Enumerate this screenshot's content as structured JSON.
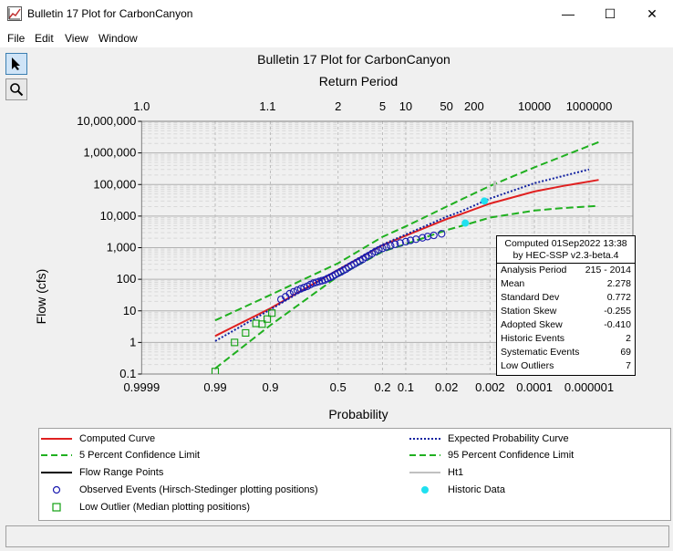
{
  "window": {
    "title": "Bulletin 17 Plot for CarbonCanyon",
    "minimize": "—",
    "maximize": "☐",
    "close": "✕"
  },
  "menu": [
    "File",
    "Edit",
    "View",
    "Window"
  ],
  "tools": [
    {
      "name": "pointer-icon"
    },
    {
      "name": "zoom-icon"
    }
  ],
  "colors": {
    "computed": "#e02020",
    "expected": "#1020a0",
    "confidence": "#20b020",
    "observed": "#1a1ab0",
    "low_outlier": "#10a010",
    "historic": "#20e0f0",
    "ht1": "#c0c0c0",
    "flow_range": "#000000"
  },
  "chart_data": {
    "type": "line",
    "title": "Bulletin 17 Plot for CarbonCanyon",
    "top_axis_label": "Return Period",
    "xlabel": "Probability",
    "ylabel": "Flow (cfs)",
    "y_scale": "log",
    "x_scale": "normal-probability",
    "ylim": [
      0.1,
      10000000
    ],
    "y_ticks": [
      {
        "value": 0.1,
        "label": "0.1"
      },
      {
        "value": 1,
        "label": "1"
      },
      {
        "value": 10,
        "label": "10"
      },
      {
        "value": 100,
        "label": "100"
      },
      {
        "value": 1000,
        "label": "1,000"
      },
      {
        "value": 10000,
        "label": "10,000"
      },
      {
        "value": 100000,
        "label": "100,000"
      },
      {
        "value": 1000000,
        "label": "1,000,000"
      },
      {
        "value": 10000000,
        "label": "10,000,000"
      }
    ],
    "prob_ticks": [
      {
        "value": 0.9999,
        "label": "0.9999"
      },
      {
        "value": 0.99,
        "label": "0.99"
      },
      {
        "value": 0.9,
        "label": "0.9"
      },
      {
        "value": 0.5,
        "label": "0.5"
      },
      {
        "value": 0.2,
        "label": "0.2"
      },
      {
        "value": 0.1,
        "label": "0.1"
      },
      {
        "value": 0.02,
        "label": "0.02"
      },
      {
        "value": 0.002,
        "label": "0.002"
      },
      {
        "value": 0.0001,
        "label": "0.0001"
      },
      {
        "value": 1e-06,
        "label": "0.000001"
      }
    ],
    "return_ticks": [
      {
        "value": 1.0,
        "label": "1.0"
      },
      {
        "value": 1.1,
        "label": "1.1"
      },
      {
        "value": 2,
        "label": "2"
      },
      {
        "value": 5,
        "label": "5"
      },
      {
        "value": 10,
        "label": "10"
      },
      {
        "value": 50,
        "label": "50"
      },
      {
        "value": 200,
        "label": "200"
      },
      {
        "value": 10000,
        "label": "10000"
      },
      {
        "value": 1000000,
        "label": "1000000"
      }
    ],
    "grid": true,
    "legend_placement": "bottom",
    "series": [
      {
        "name": "Computed Curve",
        "style": "solid",
        "points": [
          [
            0.99,
            1.6
          ],
          [
            0.9,
            12
          ],
          [
            0.5,
            200
          ],
          [
            0.2,
            1200
          ],
          [
            0.1,
            2400
          ],
          [
            0.02,
            8000
          ],
          [
            0.01,
            11500
          ],
          [
            0.002,
            25000
          ],
          [
            0.0001,
            60000
          ],
          [
            1e-05,
            90000
          ],
          [
            4e-07,
            140000
          ]
        ]
      },
      {
        "name": "Expected Probability Curve",
        "style": "dotted",
        "points": [
          [
            0.99,
            1.1
          ],
          [
            0.9,
            11
          ],
          [
            0.5,
            200
          ],
          [
            0.2,
            1250
          ],
          [
            0.1,
            2600
          ],
          [
            0.02,
            9500
          ],
          [
            0.01,
            14000
          ],
          [
            0.002,
            36000
          ],
          [
            0.0001,
            110000
          ],
          [
            1e-06,
            300000
          ]
        ]
      },
      {
        "name": "5 Percent Confidence Limit",
        "style": "dashed",
        "points": [
          [
            0.99,
            0.15
          ],
          [
            0.9,
            3.5
          ],
          [
            0.5,
            125
          ],
          [
            0.2,
            750
          ],
          [
            0.1,
            1300
          ],
          [
            0.02,
            3600
          ],
          [
            0.01,
            4800
          ],
          [
            0.002,
            9000
          ],
          [
            0.0001,
            15000
          ],
          [
            1e-05,
            18000
          ],
          [
            4e-07,
            21000
          ]
        ]
      },
      {
        "name": "95 Percent Confidence Limit",
        "style": "dashed",
        "points": [
          [
            0.99,
            5
          ],
          [
            0.9,
            32
          ],
          [
            0.5,
            320
          ],
          [
            0.2,
            2200
          ],
          [
            0.1,
            4700
          ],
          [
            0.02,
            20000
          ],
          [
            0.01,
            33000
          ],
          [
            0.002,
            90000
          ],
          [
            0.0001,
            350000
          ],
          [
            1e-05,
            800000
          ],
          [
            4e-07,
            2200000
          ]
        ]
      }
    ],
    "observed_events": {
      "name": "Observed Events (Hirsch-Stedinger plotting positions)",
      "points": [
        [
          0.86,
          23
        ],
        [
          0.84,
          28
        ],
        [
          0.82,
          35
        ],
        [
          0.8,
          40
        ],
        [
          0.78,
          45
        ],
        [
          0.76,
          50
        ],
        [
          0.74,
          55
        ],
        [
          0.72,
          60
        ],
        [
          0.7,
          68
        ],
        [
          0.68,
          75
        ],
        [
          0.66,
          80
        ],
        [
          0.64,
          85
        ],
        [
          0.62,
          90
        ],
        [
          0.6,
          95
        ],
        [
          0.58,
          105
        ],
        [
          0.56,
          115
        ],
        [
          0.54,
          125
        ],
        [
          0.52,
          140
        ],
        [
          0.5,
          155
        ],
        [
          0.48,
          170
        ],
        [
          0.46,
          190
        ],
        [
          0.44,
          210
        ],
        [
          0.42,
          240
        ],
        [
          0.4,
          270
        ],
        [
          0.38,
          300
        ],
        [
          0.36,
          340
        ],
        [
          0.34,
          380
        ],
        [
          0.32,
          430
        ],
        [
          0.3,
          500
        ],
        [
          0.28,
          560
        ],
        [
          0.26,
          650
        ],
        [
          0.24,
          750
        ],
        [
          0.22,
          850
        ],
        [
          0.2,
          950
        ],
        [
          0.18,
          1050
        ],
        [
          0.16,
          1150
        ],
        [
          0.14,
          1280
        ],
        [
          0.12,
          1400
        ],
        [
          0.1,
          1550
        ],
        [
          0.085,
          1700
        ],
        [
          0.07,
          1850
        ],
        [
          0.055,
          2050
        ],
        [
          0.045,
          2250
        ],
        [
          0.035,
          2450
        ],
        [
          0.025,
          2750
        ]
      ]
    },
    "low_outliers": {
      "name": "Low Outlier (Median plotting positions)",
      "points": [
        [
          0.99,
          0.12
        ],
        [
          0.975,
          1.0
        ],
        [
          0.96,
          2.0
        ],
        [
          0.94,
          4.0
        ],
        [
          0.925,
          3.8
        ],
        [
          0.91,
          5.5
        ],
        [
          0.895,
          8.5
        ]
      ]
    },
    "historic_data": {
      "name": "Historic Data",
      "points": [
        [
          0.008,
          6000
        ],
        [
          0.0028,
          30000
        ]
      ]
    },
    "flow_range_points": {
      "name": "Flow Range Points",
      "ranges": [
        [
          0.008,
          4800,
          7000
        ],
        [
          0.0028,
          25000,
          36000
        ]
      ]
    },
    "ht1": {
      "name": "Ht1",
      "ranges": [
        [
          0.0015,
          60000,
          130000
        ]
      ]
    }
  },
  "stats": {
    "computed": "Computed 01Sep2022 13:38",
    "by": "by HEC-SSP v2.3-beta.4",
    "rows": [
      {
        "label": "Analysis Period",
        "value": "215 - 2014"
      },
      {
        "label": "Mean",
        "value": "2.278"
      },
      {
        "label": "Standard Dev",
        "value": "0.772"
      },
      {
        "label": "Station Skew",
        "value": "-0.255"
      },
      {
        "label": "Adopted Skew",
        "value": "-0.410"
      },
      {
        "label": "Historic Events",
        "value": "2"
      },
      {
        "label": "Systematic Events",
        "value": "69"
      },
      {
        "label": "Low Outliers",
        "value": "7"
      }
    ]
  },
  "legend": {
    "computed": "Computed Curve",
    "expected": "Expected Probability Curve",
    "lower": "5 Percent Confidence Limit",
    "upper": "95 Percent Confidence Limit",
    "flow_range": "Flow Range Points",
    "ht1": "Ht1",
    "observed": "Observed Events (Hirsch-Stedinger plotting positions)",
    "historic": "Historic Data",
    "low_outlier": "Low Outlier (Median plotting positions)"
  }
}
